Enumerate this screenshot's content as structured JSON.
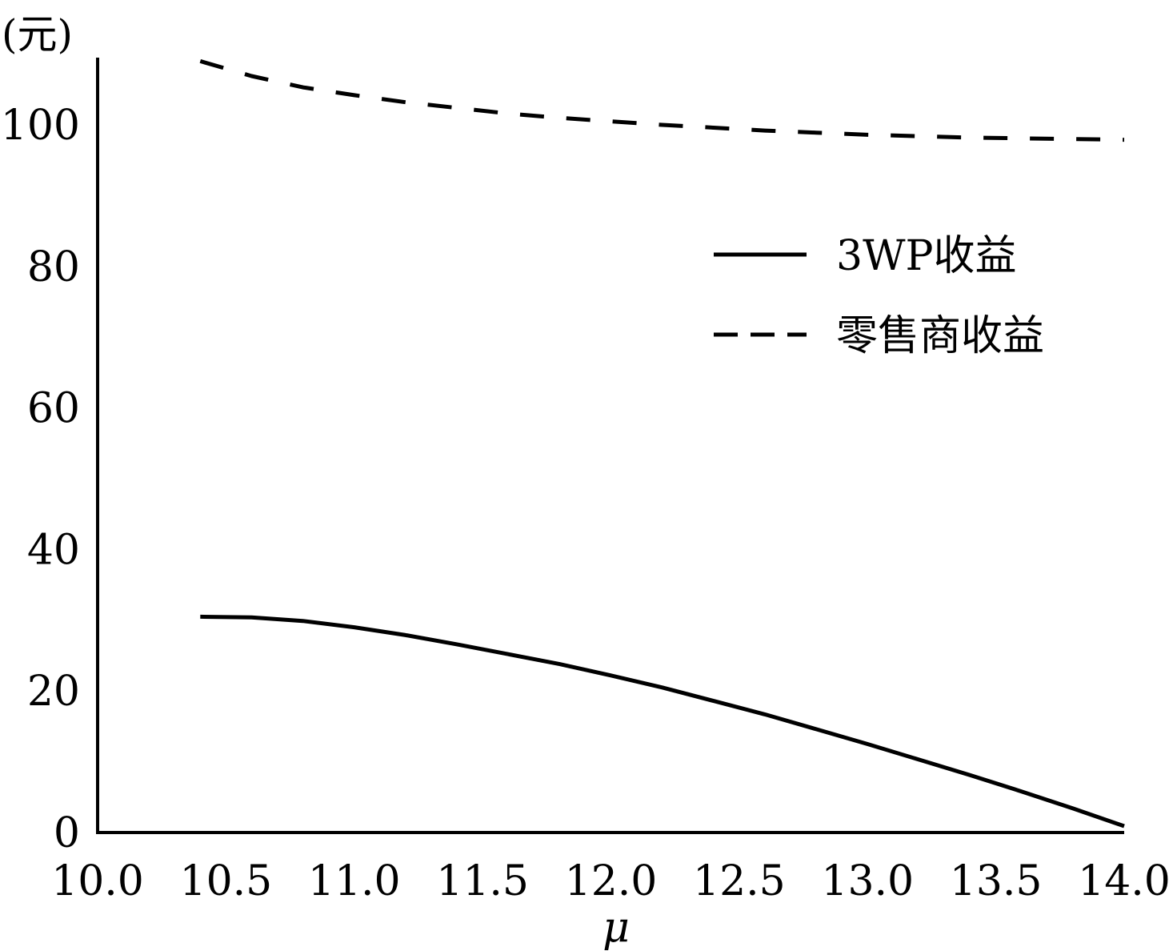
{
  "chart_data": {
    "type": "line",
    "title": "",
    "xlabel": "μ",
    "ylabel": "(元)",
    "xlim": [
      10.0,
      14.0
    ],
    "ylim": [
      0,
      110
    ],
    "x_ticks": [
      "10.0",
      "10.5",
      "11.0",
      "11.5",
      "12.0",
      "12.5",
      "13.0",
      "13.5",
      "14.0"
    ],
    "y_ticks": [
      "0",
      "20",
      "40",
      "60",
      "80",
      "100"
    ],
    "grid": false,
    "legend_position": "center-right",
    "series": [
      {
        "name": "3WP收益",
        "style": "solid",
        "color": "#000000",
        "x": [
          10.4,
          10.6,
          10.8,
          11.0,
          11.2,
          11.4,
          11.6,
          11.8,
          12.0,
          12.2,
          12.4,
          12.6,
          12.8,
          13.0,
          13.2,
          13.4,
          13.6,
          13.8,
          14.0
        ],
        "y": [
          30.5,
          30.4,
          29.9,
          29.0,
          27.9,
          26.6,
          25.2,
          23.8,
          22.2,
          20.5,
          18.6,
          16.7,
          14.6,
          12.5,
          10.3,
          8.1,
          5.8,
          3.4,
          0.9
        ]
      },
      {
        "name": "零售商收益",
        "style": "dashed",
        "color": "#000000",
        "x": [
          10.4,
          10.6,
          10.8,
          11.0,
          11.2,
          11.4,
          11.6,
          11.8,
          12.0,
          12.2,
          12.4,
          12.6,
          12.8,
          13.0,
          13.2,
          13.4,
          13.6,
          13.8,
          14.0
        ],
        "y": [
          109.0,
          106.9,
          105.3,
          104.2,
          103.2,
          102.4,
          101.6,
          101.0,
          100.5,
          100.0,
          99.6,
          99.2,
          98.9,
          98.6,
          98.4,
          98.2,
          98.1,
          98.0,
          97.9
        ]
      }
    ]
  }
}
